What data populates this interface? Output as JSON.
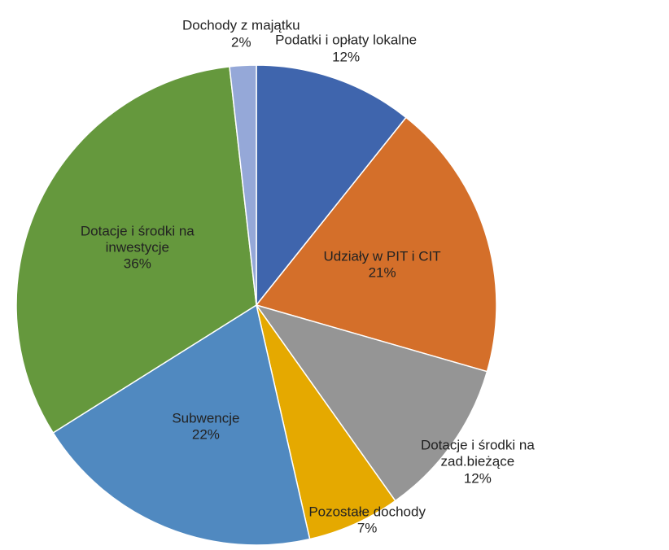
{
  "chart_data": {
    "type": "pie",
    "categories": [
      "Podatki i opłaty lokalne",
      "Udziały w PIT i CIT",
      "Dotacje i środki na zad.bieżące",
      "Pozostałe dochody",
      "Subwencje",
      "Dotacje i środki na inwestycje",
      "Dochody z majątku"
    ],
    "values": [
      12,
      21,
      12,
      7,
      22,
      36,
      2
    ],
    "value_labels": [
      "12%",
      "21%",
      "12%",
      "7%",
      "22%",
      "36%",
      "2%"
    ],
    "colors": [
      "#3f65ad",
      "#d46f2a",
      "#959595",
      "#e5a900",
      "#5089c0",
      "#65983d",
      "#95a8d8"
    ]
  }
}
